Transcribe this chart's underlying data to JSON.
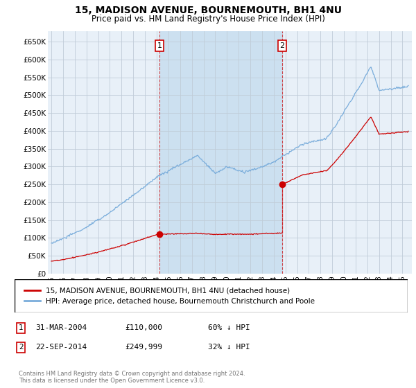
{
  "title": "15, MADISON AVENUE, BOURNEMOUTH, BH1 4NU",
  "subtitle": "Price paid vs. HM Land Registry's House Price Index (HPI)",
  "ylabel_ticks": [
    "£0",
    "£50K",
    "£100K",
    "£150K",
    "£200K",
    "£250K",
    "£300K",
    "£350K",
    "£400K",
    "£450K",
    "£500K",
    "£550K",
    "£600K",
    "£650K"
  ],
  "ytick_values": [
    0,
    50000,
    100000,
    150000,
    200000,
    250000,
    300000,
    350000,
    400000,
    450000,
    500000,
    550000,
    600000,
    650000
  ],
  "ylim": [
    0,
    680000
  ],
  "xlim_start": 1994.7,
  "xlim_end": 2025.8,
  "sale1_date": 2004.24,
  "sale1_price": 110000,
  "sale1_label": "1",
  "sale2_date": 2014.72,
  "sale2_price": 249999,
  "sale2_label": "2",
  "hpi_color": "#7aaddb",
  "sale_color": "#cc0000",
  "shade_color": "#cce0f0",
  "annotation_box_color": "#cc0000",
  "background_color": "#e8f0f8",
  "grid_color": "#c0ccd8",
  "footer_text": "Contains HM Land Registry data © Crown copyright and database right 2024.\nThis data is licensed under the Open Government Licence v3.0.",
  "legend_entry1": "15, MADISON AVENUE, BOURNEMOUTH, BH1 4NU (detached house)",
  "legend_entry2": "HPI: Average price, detached house, Bournemouth Christchurch and Poole"
}
